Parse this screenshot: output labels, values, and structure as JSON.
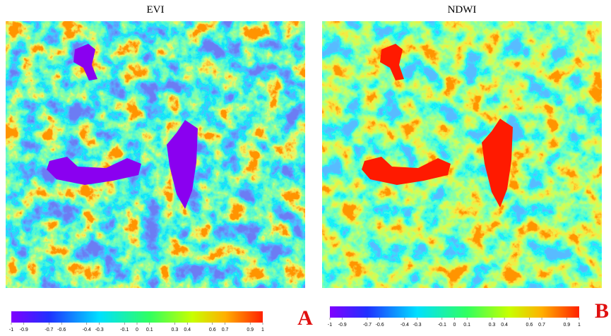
{
  "panels": [
    {
      "title": "EVI",
      "label": "A",
      "colorbar": {
        "range": [
          -1,
          1
        ],
        "ticks": [
          -1,
          -0.9,
          -0.7,
          -0.6,
          -0.4,
          -0.3,
          -0.1,
          0,
          0.1,
          0.3,
          0.4,
          0.6,
          0.7,
          0.9,
          1
        ]
      }
    },
    {
      "title": "NDWI",
      "label": "B",
      "colorbar": {
        "range": [
          -1,
          1
        ],
        "ticks": [
          -1,
          -0.9,
          -0.7,
          -0.6,
          -0.4,
          -0.3,
          -0.1,
          0,
          0.1,
          0.3,
          0.4,
          0.6,
          0.7,
          0.9,
          1
        ]
      }
    }
  ]
}
